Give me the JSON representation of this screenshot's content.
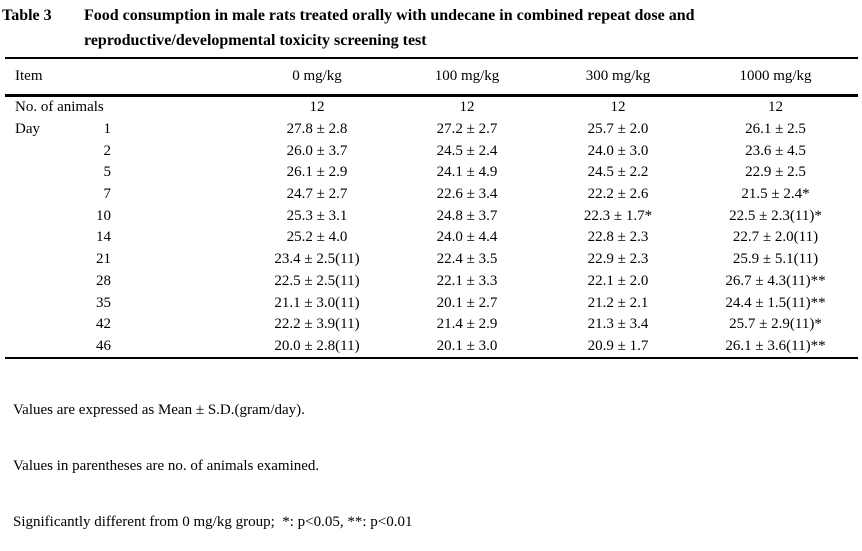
{
  "title": {
    "label": "Table 3",
    "line1": "Food consumption in male rats treated orally with undecane in combined repeat dose and",
    "line2": "reproductive/developmental toxicity screening test"
  },
  "table": {
    "item_header": "Item",
    "dose_headers": [
      "0 mg/kg",
      "100 mg/kg",
      "300 mg/kg",
      "1000 mg/kg"
    ],
    "animals_label": "No. of animals",
    "animals_values": [
      "12",
      "12",
      "12",
      "12"
    ],
    "day_label": "Day",
    "rows": [
      {
        "day": "1",
        "values": [
          "27.8 ± 2.8",
          "27.2 ± 2.7",
          "25.7 ± 2.0",
          "26.1 ± 2.5"
        ]
      },
      {
        "day": "2",
        "values": [
          "26.0 ± 3.7",
          "24.5 ± 2.4",
          "24.0 ± 3.0",
          "23.6 ± 4.5"
        ]
      },
      {
        "day": "5",
        "values": [
          "26.1 ± 2.9",
          "24.1 ± 4.9",
          "24.5 ± 2.2",
          "22.9 ± 2.5"
        ]
      },
      {
        "day": "7",
        "values": [
          "24.7 ± 2.7",
          "22.6 ± 3.4",
          "22.2 ± 2.6",
          "21.5 ± 2.4*"
        ]
      },
      {
        "day": "10",
        "values": [
          "25.3 ± 3.1",
          "24.8 ± 3.7",
          "22.3 ± 1.7*",
          "22.5 ± 2.3(11)*"
        ]
      },
      {
        "day": "14",
        "values": [
          "25.2 ± 4.0",
          "24.0 ± 4.4",
          "22.8 ± 2.3",
          "22.7 ± 2.0(11)"
        ]
      },
      {
        "day": "21",
        "values": [
          "23.4 ± 2.5(11)",
          "22.4 ± 3.5",
          "22.9 ± 2.3",
          "25.9 ± 5.1(11)"
        ]
      },
      {
        "day": "28",
        "values": [
          "22.5 ± 2.5(11)",
          "22.1 ± 3.3",
          "22.1 ± 2.0",
          "26.7 ± 4.3(11)**"
        ]
      },
      {
        "day": "35",
        "values": [
          "21.1 ± 3.0(11)",
          "20.1 ± 2.7",
          "21.2 ± 2.1",
          "24.4 ± 1.5(11)**"
        ]
      },
      {
        "day": "42",
        "values": [
          "22.2 ± 3.9(11)",
          "21.4 ± 2.9",
          "21.3 ± 3.4",
          "25.7 ± 2.9(11)*"
        ]
      },
      {
        "day": "46",
        "values": [
          "20.0 ± 2.8(11)",
          "20.1 ± 3.0",
          "20.9 ± 1.7",
          "26.1 ± 3.6(11)**"
        ]
      }
    ]
  },
  "footnotes": [
    "Values are expressed as Mean ± S.D.(gram/day).",
    "Values in parentheses are no. of animals examined.",
    "Significantly different from 0 mg/kg group;  *: p<0.05, **: p<0.01"
  ]
}
